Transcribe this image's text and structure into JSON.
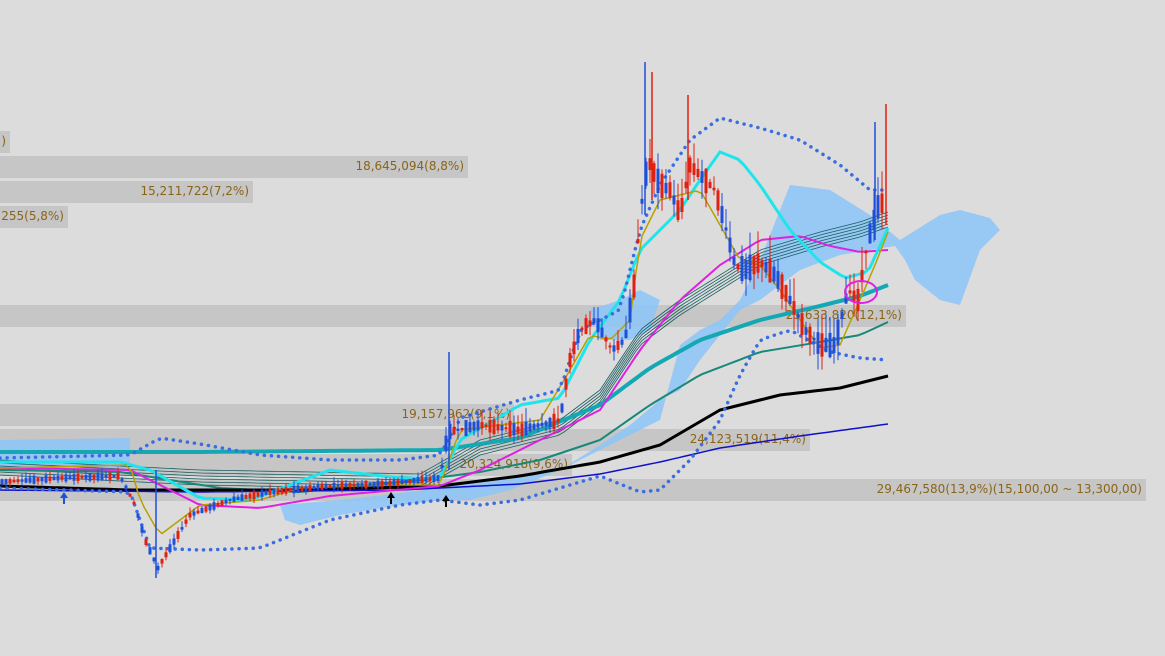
{
  "chart_data": {
    "type": "candlestick",
    "volume_profile": [
      {
        "label": "…)",
        "rank": 1
      },
      {
        "label": "18,645,094(8,8%)",
        "rank": 2
      },
      {
        "label": "15,211,722(7,2%)",
        "rank": 3
      },
      {
        "label": "…255(5,8%)",
        "rank": 4
      },
      {
        "label": "25,633,820(12,1%)",
        "rank": 5
      },
      {
        "label": "19,157,962(9,1%)",
        "rank": 6
      },
      {
        "label": "24,123,519(11,4%)",
        "rank": 7
      },
      {
        "label": "20,324,918(9,6%)",
        "rank": 8
      },
      {
        "label": "29,467,580(13,9%)(15,100,00 ~ 13,300,00)",
        "rank": 9
      }
    ],
    "colors": {
      "up": "#e02010",
      "down": "#1f4ed8",
      "ma_short": "#b8a000",
      "ma_cyan": "#20e4ec",
      "ma_magenta": "#e020e0",
      "ma_teal": "#14a8b4",
      "ma_dark_teal": "#188878",
      "ma_black": "#000000",
      "ma_blue": "#1010c8",
      "bollinger": "#3a6ee0",
      "cloud": "#8cc4f8",
      "volume_profile": "#c6c6c6"
    }
  }
}
